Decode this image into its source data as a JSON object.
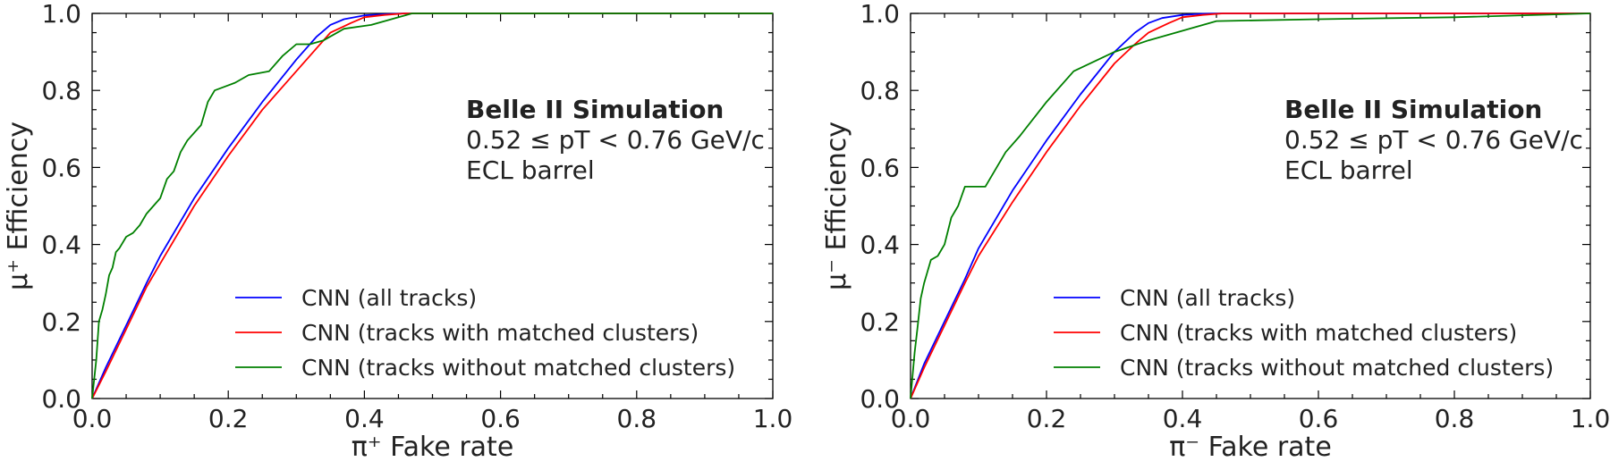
{
  "chart_data": [
    {
      "type": "line",
      "xlabel": "π⁺ Fake rate",
      "ylabel": "μ⁺ Efficiency",
      "xlim": [
        0,
        1
      ],
      "ylim": [
        0,
        1
      ],
      "xticks": [
        "0.0",
        "0.2",
        "0.4",
        "0.6",
        "0.8",
        "1.0"
      ],
      "yticks": [
        "0.0",
        "0.2",
        "0.4",
        "0.6",
        "0.8",
        "1.0"
      ],
      "annotation": {
        "title": "Belle II Simulation",
        "line1": "0.52 ≤ pT < 0.76 GeV/c",
        "line2": "ECL barrel"
      },
      "legend_position": "lower-right",
      "series": [
        {
          "name": "CNN (all tracks)",
          "color": "#0000ff",
          "x": [
            0.0,
            0.02,
            0.05,
            0.08,
            0.1,
            0.15,
            0.2,
            0.25,
            0.3,
            0.33,
            0.35,
            0.37,
            0.4,
            0.43,
            0.46,
            0.5,
            0.6,
            0.8,
            1.0
          ],
          "y": [
            0.0,
            0.08,
            0.19,
            0.3,
            0.37,
            0.52,
            0.65,
            0.77,
            0.88,
            0.94,
            0.97,
            0.985,
            0.995,
            0.998,
            1.0,
            1.0,
            1.0,
            1.0,
            1.0
          ]
        },
        {
          "name": "CNN (tracks with matched clusters)",
          "color": "#ff0000",
          "x": [
            0.0,
            0.02,
            0.05,
            0.08,
            0.1,
            0.15,
            0.2,
            0.25,
            0.3,
            0.33,
            0.35,
            0.38,
            0.4,
            0.43,
            0.46,
            0.5,
            0.6,
            0.8,
            1.0
          ],
          "y": [
            0.0,
            0.07,
            0.18,
            0.29,
            0.35,
            0.5,
            0.63,
            0.75,
            0.85,
            0.91,
            0.95,
            0.975,
            0.99,
            0.996,
            1.0,
            1.0,
            1.0,
            1.0,
            1.0
          ]
        },
        {
          "name": "CNN (tracks without matched clusters)",
          "color": "#008000",
          "x": [
            0.0,
            0.003,
            0.006,
            0.01,
            0.015,
            0.02,
            0.025,
            0.03,
            0.035,
            0.04,
            0.05,
            0.06,
            0.07,
            0.08,
            0.1,
            0.11,
            0.12,
            0.13,
            0.14,
            0.16,
            0.17,
            0.18,
            0.21,
            0.23,
            0.26,
            0.28,
            0.3,
            0.32,
            0.34,
            0.37,
            0.41,
            0.47,
            0.6,
            0.8,
            1.0
          ],
          "y": [
            0.0,
            0.05,
            0.1,
            0.2,
            0.23,
            0.27,
            0.32,
            0.34,
            0.38,
            0.39,
            0.42,
            0.43,
            0.45,
            0.48,
            0.52,
            0.57,
            0.59,
            0.64,
            0.67,
            0.71,
            0.77,
            0.8,
            0.82,
            0.84,
            0.85,
            0.89,
            0.92,
            0.92,
            0.93,
            0.96,
            0.97,
            1.0,
            1.0,
            1.0,
            1.0
          ]
        }
      ]
    },
    {
      "type": "line",
      "xlabel": "π⁻ Fake rate",
      "ylabel": "μ⁻ Efficiency",
      "xlim": [
        0,
        1
      ],
      "ylim": [
        0,
        1
      ],
      "xticks": [
        "0.0",
        "0.2",
        "0.4",
        "0.6",
        "0.8",
        "1.0"
      ],
      "yticks": [
        "0.0",
        "0.2",
        "0.4",
        "0.6",
        "0.8",
        "1.0"
      ],
      "annotation": {
        "title": "Belle II Simulation",
        "line1": "0.52 ≤ pT < 0.76 GeV/c",
        "line2": "ECL barrel"
      },
      "legend_position": "lower-right",
      "series": [
        {
          "name": "CNN (all tracks)",
          "color": "#0000ff",
          "x": [
            0.0,
            0.02,
            0.05,
            0.08,
            0.1,
            0.15,
            0.2,
            0.25,
            0.3,
            0.33,
            0.35,
            0.37,
            0.4,
            0.43,
            0.46,
            0.5,
            0.6,
            0.8,
            1.0
          ],
          "y": [
            0.0,
            0.09,
            0.2,
            0.31,
            0.39,
            0.54,
            0.67,
            0.79,
            0.9,
            0.95,
            0.975,
            0.988,
            0.996,
            0.999,
            1.0,
            1.0,
            1.0,
            1.0,
            1.0
          ]
        },
        {
          "name": "CNN (tracks with matched clusters)",
          "color": "#ff0000",
          "x": [
            0.0,
            0.02,
            0.05,
            0.08,
            0.1,
            0.15,
            0.2,
            0.25,
            0.3,
            0.33,
            0.35,
            0.38,
            0.4,
            0.43,
            0.46,
            0.5,
            0.6,
            0.8,
            1.0
          ],
          "y": [
            0.0,
            0.08,
            0.19,
            0.3,
            0.37,
            0.51,
            0.64,
            0.76,
            0.87,
            0.92,
            0.95,
            0.975,
            0.99,
            0.996,
            1.0,
            1.0,
            1.0,
            1.0,
            1.0
          ]
        },
        {
          "name": "CNN (tracks without matched clusters)",
          "color": "#008000",
          "x": [
            0.0,
            0.003,
            0.006,
            0.01,
            0.015,
            0.02,
            0.025,
            0.03,
            0.04,
            0.05,
            0.06,
            0.07,
            0.08,
            0.09,
            0.1,
            0.11,
            0.14,
            0.16,
            0.2,
            0.24,
            0.3,
            0.35,
            0.45,
            0.6,
            0.8,
            1.0
          ],
          "y": [
            0.0,
            0.06,
            0.12,
            0.18,
            0.26,
            0.3,
            0.33,
            0.36,
            0.37,
            0.4,
            0.47,
            0.5,
            0.55,
            0.55,
            0.55,
            0.55,
            0.64,
            0.68,
            0.77,
            0.85,
            0.9,
            0.93,
            0.98,
            0.985,
            0.99,
            1.0
          ]
        }
      ]
    }
  ]
}
